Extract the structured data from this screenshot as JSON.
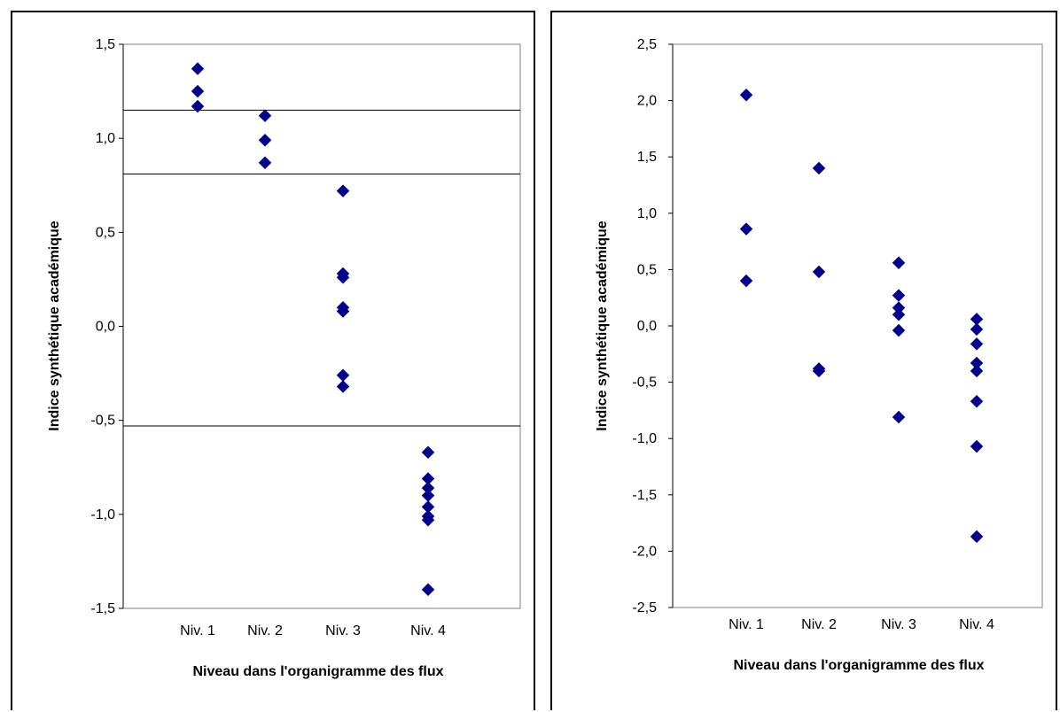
{
  "chart_data": [
    {
      "type": "scatter",
      "xlabel": "Niveau dans l'organigramme des flux",
      "ylabel": "Indice synthétique académique",
      "categories": [
        "Niv. 1",
        "Niv. 2",
        "Niv. 3",
        "Niv. 4"
      ],
      "ylim": [
        -1.5,
        1.5
      ],
      "yticks": [
        "1,5",
        "1,0",
        "0,5",
        "0,0",
        "-0,5",
        "-1,0",
        "-1,5"
      ],
      "ytick_values": [
        1.5,
        1.0,
        0.5,
        0.0,
        -0.5,
        -1.0,
        -1.5
      ],
      "marker_color": "#00008B",
      "hlines": [
        1.15,
        0.81,
        -0.53
      ],
      "points": [
        {
          "x": "Niv. 1",
          "y": 1.37
        },
        {
          "x": "Niv. 1",
          "y": 1.25
        },
        {
          "x": "Niv. 1",
          "y": 1.17
        },
        {
          "x": "Niv. 2",
          "y": 1.12
        },
        {
          "x": "Niv. 2",
          "y": 0.99
        },
        {
          "x": "Niv. 2",
          "y": 0.87
        },
        {
          "x": "Niv. 3",
          "y": 0.72
        },
        {
          "x": "Niv. 3",
          "y": 0.28
        },
        {
          "x": "Niv. 3",
          "y": 0.26
        },
        {
          "x": "Niv. 3",
          "y": 0.1
        },
        {
          "x": "Niv. 3",
          "y": 0.08
        },
        {
          "x": "Niv. 3",
          "y": -0.26
        },
        {
          "x": "Niv. 3",
          "y": -0.32
        },
        {
          "x": "Niv. 4",
          "y": -0.67
        },
        {
          "x": "Niv. 4",
          "y": -0.81
        },
        {
          "x": "Niv. 4",
          "y": -0.86
        },
        {
          "x": "Niv. 4",
          "y": -0.9
        },
        {
          "x": "Niv. 4",
          "y": -0.96
        },
        {
          "x": "Niv. 4",
          "y": -1.01
        },
        {
          "x": "Niv. 4",
          "y": -1.03
        },
        {
          "x": "Niv. 4",
          "y": -1.4
        }
      ]
    },
    {
      "type": "scatter",
      "xlabel": "Niveau dans l'organigramme des flux",
      "ylabel": "Indice synthétique académique",
      "categories": [
        "Niv. 1",
        "Niv. 2",
        "Niv. 3",
        "Niv. 4"
      ],
      "ylim": [
        -2.5,
        2.5
      ],
      "yticks": [
        "2,5",
        "2,0",
        "1,5",
        "1,0",
        "0,5",
        "0,0",
        "-0,5",
        "-1,0",
        "-1,5",
        "-2,0",
        "-2,5"
      ],
      "ytick_values": [
        2.5,
        2.0,
        1.5,
        1.0,
        0.5,
        0.0,
        -0.5,
        -1.0,
        -1.5,
        -2.0,
        -2.5
      ],
      "marker_color": "#00008B",
      "hlines": [],
      "points": [
        {
          "x": "Niv. 1",
          "y": 2.05
        },
        {
          "x": "Niv. 1",
          "y": 0.86
        },
        {
          "x": "Niv. 1",
          "y": 0.4
        },
        {
          "x": "Niv. 2",
          "y": 1.4
        },
        {
          "x": "Niv. 2",
          "y": 0.48
        },
        {
          "x": "Niv. 2",
          "y": -0.38
        },
        {
          "x": "Niv. 2",
          "y": -0.4
        },
        {
          "x": "Niv. 3",
          "y": 0.56
        },
        {
          "x": "Niv. 3",
          "y": 0.27
        },
        {
          "x": "Niv. 3",
          "y": 0.16
        },
        {
          "x": "Niv. 3",
          "y": 0.1
        },
        {
          "x": "Niv. 3",
          "y": -0.04
        },
        {
          "x": "Niv. 3",
          "y": -0.81
        },
        {
          "x": "Niv. 4",
          "y": 0.06
        },
        {
          "x": "Niv. 4",
          "y": -0.03
        },
        {
          "x": "Niv. 4",
          "y": -0.16
        },
        {
          "x": "Niv. 4",
          "y": -0.33
        },
        {
          "x": "Niv. 4",
          "y": -0.4
        },
        {
          "x": "Niv. 4",
          "y": -0.67
        },
        {
          "x": "Niv. 4",
          "y": -1.07
        },
        {
          "x": "Niv. 4",
          "y": -1.87
        }
      ]
    }
  ]
}
